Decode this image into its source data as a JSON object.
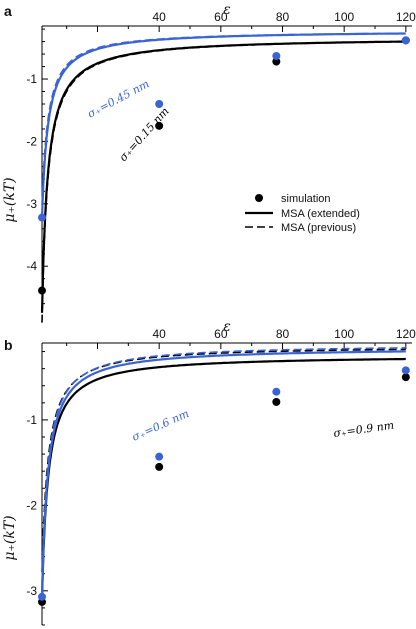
{
  "colors": {
    "black": "#000000",
    "blue": "#3a64d6"
  },
  "legend": {
    "simulation": "simulation",
    "extended": "MSA (extended)",
    "previous": "MSA (previous)"
  },
  "chart_data": [
    {
      "panel": "a",
      "type": "line",
      "xlabel": "ε",
      "ylabel": "μ₊(kT)",
      "xlim": [
        2,
        122
      ],
      "ylim": [
        -4.75,
        -0.15
      ],
      "xticks": [
        40,
        60,
        80,
        100,
        120
      ],
      "yticks": [
        -1,
        -2,
        -3,
        -4
      ],
      "series": [
        {
          "key": "sim_s015",
          "kind": "scatter",
          "color": "black",
          "x": [
            2,
            40,
            78,
            120
          ],
          "y": [
            -4.39,
            -1.75,
            -0.72,
            -0.38
          ]
        },
        {
          "key": "sim_s045",
          "kind": "scatter",
          "color": "blue",
          "x": [
            2,
            40,
            78,
            120
          ],
          "y": [
            -3.22,
            -1.4,
            -0.63,
            -0.38
          ]
        },
        {
          "key": "ext_s015",
          "kind": "line",
          "dash": false,
          "color": "black",
          "a": -0.33,
          "b": -8.3,
          "c": 0.12
        },
        {
          "key": "prev_s015",
          "kind": "line",
          "dash": true,
          "color": "black",
          "a": -0.33,
          "b": -8.6,
          "c": 0.12
        },
        {
          "key": "ext_s045",
          "kind": "line",
          "dash": false,
          "color": "blue",
          "a": -0.22,
          "b": -6.0,
          "c": 0.0
        },
        {
          "key": "prev_s045",
          "kind": "line",
          "dash": true,
          "color": "blue",
          "a": -0.22,
          "b": -5.6,
          "c": 0.0
        }
      ],
      "annotations": [
        {
          "text": "σ₊=0.45 nm",
          "color": "blue"
        },
        {
          "text": "σ₊=0.15 nm",
          "color": "black"
        }
      ]
    },
    {
      "panel": "b",
      "type": "line",
      "xlabel": "ε",
      "ylabel": "μ₊(kT)",
      "xlim": [
        2,
        122
      ],
      "ylim": [
        -3.4,
        -0.1
      ],
      "xticks": [
        40,
        60,
        80,
        100,
        120
      ],
      "yticks": [
        -1,
        -2,
        -3
      ],
      "series": [
        {
          "key": "sim_s09",
          "kind": "scatter",
          "color": "black",
          "x": [
            2,
            40,
            78,
            120
          ],
          "y": [
            -3.13,
            -1.55,
            -0.79,
            -0.5
          ]
        },
        {
          "key": "sim_s06",
          "kind": "scatter",
          "color": "blue",
          "x": [
            2,
            40,
            78,
            120
          ],
          "y": [
            -3.07,
            -1.43,
            -0.67,
            -0.42
          ]
        },
        {
          "key": "ext_s09",
          "kind": "line",
          "dash": false,
          "color": "black",
          "a": -0.24,
          "b": -5.7,
          "c": 0.0
        },
        {
          "key": "prev_s09",
          "kind": "line",
          "dash": true,
          "color": "black",
          "a": -0.13,
          "b": -5.3,
          "c": 0.0
        },
        {
          "key": "ext_s06",
          "kind": "line",
          "dash": false,
          "color": "blue",
          "a": -0.15,
          "b": -5.8,
          "c": 0.0
        },
        {
          "key": "prev_s06",
          "kind": "line",
          "dash": true,
          "color": "blue",
          "a": -0.11,
          "b": -5.6,
          "c": 0.0
        }
      ],
      "annotations": [
        {
          "text": "σ₊=0.6 nm",
          "color": "blue"
        },
        {
          "text": "σ₊=0.9 nm",
          "color": "black"
        }
      ]
    }
  ]
}
